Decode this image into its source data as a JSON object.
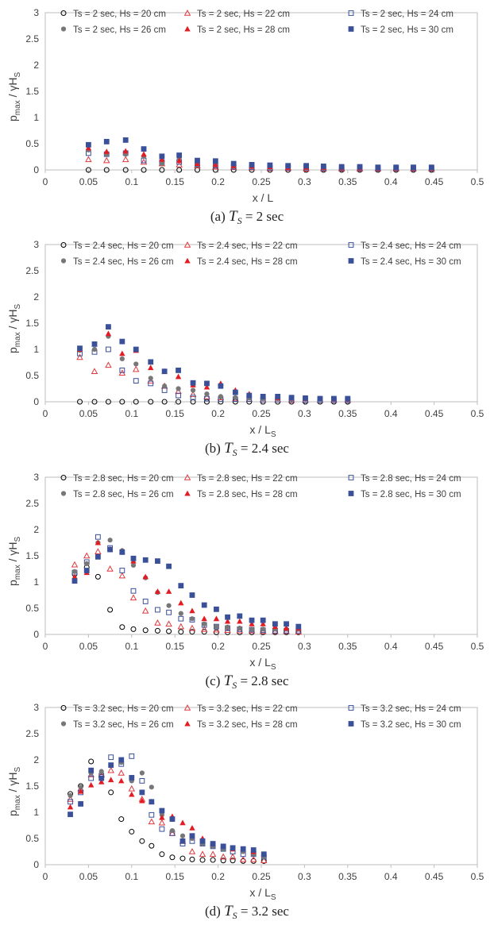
{
  "chart_data": [
    {
      "type": "scatter",
      "caption": {
        "label": "(a)",
        "symbol": "T",
        "subscript": "S",
        "value": "= 2 sec"
      },
      "xlabel": "x / L",
      "xlabel_sub": "",
      "ylabel": {
        "main": "p",
        "sub": "max",
        "rest": "/ γH",
        "sub2": "S"
      },
      "xlim": [
        0,
        0.5
      ],
      "ylim": [
        0,
        3
      ],
      "xticks": [
        "0",
        "0.05",
        "0.1",
        "0.15",
        "0.2",
        "0.25",
        "0.3",
        "0.35",
        "0.4",
        "0.45",
        "0.5"
      ],
      "yticks": [
        "0",
        "0.5",
        "1",
        "1.5",
        "2",
        "2.5",
        "3"
      ],
      "x": [
        0.05,
        0.071,
        0.093,
        0.114,
        0.135,
        0.155,
        0.176,
        0.197,
        0.218,
        0.239,
        0.26,
        0.281,
        0.302,
        0.322,
        0.343,
        0.364,
        0.385,
        0.406,
        0.426,
        0.447
      ],
      "series": [
        {
          "name": "Ts = 2 sec, Hs = 20 cm",
          "marker": "circle-open",
          "values": [
            0,
            0,
            0,
            0,
            0,
            0,
            0,
            0,
            0,
            0,
            0,
            0,
            0,
            0,
            0,
            0,
            0,
            0,
            0,
            0
          ]
        },
        {
          "name": "Ts = 2 sec, Hs = 22 cm",
          "marker": "triangle-open",
          "values": [
            0.2,
            0.18,
            0.2,
            0.15,
            0.12,
            0.1,
            0.08,
            0.06,
            0.05,
            0.04,
            0.03,
            0.03,
            0.02,
            0.02,
            0.02,
            0.02,
            0.02,
            0.02,
            0.02,
            0.02
          ]
        },
        {
          "name": "Ts = 2 sec, Hs = 24 cm",
          "marker": "square-open",
          "values": [
            0.32,
            0.3,
            0.32,
            0.18,
            0.15,
            0.15,
            0.1,
            0.08,
            0.06,
            0.05,
            0.04,
            0.04,
            0.04,
            0.03,
            0.03,
            0.03,
            0.03,
            0.03,
            0.03,
            0.03
          ]
        },
        {
          "name": "Ts = 2 sec, Hs = 26 cm",
          "marker": "circle-filled",
          "values": [
            0.38,
            0.3,
            0.3,
            0.26,
            0.12,
            0.22,
            0.1,
            0.08,
            0.07,
            0.06,
            0.05,
            0.05,
            0.05,
            0.04,
            0.04,
            0.04,
            0.04,
            0.03,
            0.03,
            0.03
          ]
        },
        {
          "name": "Ts = 2 sec, Hs = 28 cm",
          "marker": "triangle-filled",
          "values": [
            0.42,
            0.35,
            0.36,
            0.3,
            0.2,
            0.18,
            0.12,
            0.1,
            0.08,
            0.07,
            0.06,
            0.05,
            0.05,
            0.05,
            0.04,
            0.04,
            0.04,
            0.04,
            0.04,
            0.04
          ]
        },
        {
          "name": "Ts = 2 sec, Hs = 30 cm",
          "marker": "square-filled",
          "values": [
            0.48,
            0.54,
            0.57,
            0.4,
            0.26,
            0.28,
            0.18,
            0.17,
            0.12,
            0.1,
            0.09,
            0.08,
            0.08,
            0.07,
            0.06,
            0.06,
            0.05,
            0.05,
            0.05,
            0.05
          ]
        }
      ]
    },
    {
      "type": "scatter",
      "caption": {
        "label": "(b)",
        "symbol": "T",
        "subscript": "S",
        "value": "= 2.4 sec"
      },
      "xlabel": "x / L",
      "xlabel_sub": "S",
      "ylabel": {
        "main": "p",
        "sub": "max",
        "rest": "/ γH",
        "sub2": "S"
      },
      "xlim": [
        0,
        0.5
      ],
      "ylim": [
        0,
        3
      ],
      "xticks": [
        "0",
        "0.05",
        "0.1",
        "0.15",
        "0.2",
        "0.25",
        "0.3",
        "0.35",
        "0.4",
        "0.45",
        "0.5"
      ],
      "yticks": [
        "0",
        "0.5",
        "1",
        "1.5",
        "2",
        "2.5",
        "3"
      ],
      "x": [
        0.04,
        0.057,
        0.073,
        0.089,
        0.105,
        0.122,
        0.138,
        0.154,
        0.171,
        0.187,
        0.203,
        0.22,
        0.236,
        0.252,
        0.269,
        0.285,
        0.301,
        0.318,
        0.334,
        0.35
      ],
      "series": [
        {
          "name": "Ts = 2.4 sec, Hs = 20 cm",
          "marker": "circle-open",
          "values": [
            0,
            0,
            0,
            0,
            0,
            0,
            0,
            0,
            0,
            0,
            0,
            0,
            0,
            0,
            0,
            0,
            0,
            0,
            0,
            0
          ]
        },
        {
          "name": "Ts = 2.4 sec, Hs = 22 cm",
          "marker": "triangle-open",
          "values": [
            0.85,
            0.58,
            0.7,
            0.55,
            0.62,
            0.4,
            0.3,
            0.2,
            0.14,
            0.1,
            0.08,
            0.06,
            0.05,
            0.04,
            0.04,
            0.03,
            0.03,
            0.03,
            0.03,
            0.03
          ]
        },
        {
          "name": "Ts = 2.4 sec, Hs = 24 cm",
          "marker": "square-open",
          "values": [
            0.92,
            0.95,
            1.0,
            0.6,
            0.4,
            0.35,
            0.22,
            0.12,
            0.08,
            0.06,
            0.05,
            0.05,
            0.05,
            0.04,
            0.04,
            0.04,
            0.03,
            0.03,
            0.03,
            0.03
          ]
        },
        {
          "name": "Ts = 2.4 sec, Hs = 26 cm",
          "marker": "circle-filled",
          "values": [
            0.98,
            1.0,
            1.25,
            0.82,
            0.72,
            0.45,
            0.3,
            0.25,
            0.22,
            0.15,
            0.1,
            0.08,
            0.07,
            0.06,
            0.06,
            0.05,
            0.05,
            0.05,
            0.05,
            0.04
          ]
        },
        {
          "name": "Ts = 2.4 sec, Hs = 28 cm",
          "marker": "triangle-filled",
          "values": [
            1.0,
            1.1,
            1.3,
            0.92,
            0.98,
            0.65,
            0.58,
            0.48,
            0.32,
            0.28,
            0.35,
            0.22,
            0.15,
            0.1,
            0.08,
            0.07,
            0.06,
            0.06,
            0.05,
            0.05
          ]
        },
        {
          "name": "Ts = 2.4 sec, Hs = 30 cm",
          "marker": "square-filled",
          "values": [
            1.02,
            1.1,
            1.43,
            1.15,
            1.0,
            0.76,
            0.58,
            0.6,
            0.36,
            0.35,
            0.3,
            0.18,
            0.12,
            0.1,
            0.1,
            0.08,
            0.07,
            0.06,
            0.06,
            0.06
          ]
        }
      ]
    },
    {
      "type": "scatter",
      "caption": {
        "label": "(c)",
        "symbol": "T",
        "subscript": "S",
        "value": "= 2.8 sec"
      },
      "xlabel": "x / L",
      "xlabel_sub": "S",
      "ylabel": {
        "main": "p",
        "sub": "max",
        "rest": "/ γH",
        "sub2": "S"
      },
      "xlim": [
        0,
        0.5
      ],
      "ylim": [
        0,
        3
      ],
      "xticks": [
        "0",
        "0.05",
        "0.1",
        "0.15",
        "0.2",
        "0.25",
        "0.3",
        "0.35",
        "0.4",
        "0.45",
        "0.5"
      ],
      "yticks": [
        "0",
        "0.5",
        "1",
        "1.5",
        "2",
        "2.5",
        "3"
      ],
      "x": [
        0.034,
        0.048,
        0.061,
        0.075,
        0.089,
        0.102,
        0.116,
        0.13,
        0.143,
        0.157,
        0.17,
        0.184,
        0.198,
        0.211,
        0.225,
        0.239,
        0.252,
        0.266,
        0.279,
        0.293
      ],
      "series": [
        {
          "name": "Ts = 2.8 sec, Hs = 20 cm",
          "marker": "circle-open",
          "values": [
            1.15,
            1.28,
            1.1,
            0.47,
            0.14,
            0.1,
            0.08,
            0.07,
            0.06,
            0.05,
            0.05,
            0.05,
            0.04,
            0.04,
            0.04,
            0.04,
            0.04,
            0.04,
            0.04,
            0.04
          ]
        },
        {
          "name": "Ts = 2.8 sec, Hs = 22 cm",
          "marker": "triangle-open",
          "values": [
            1.33,
            1.5,
            1.58,
            1.25,
            1.12,
            0.7,
            0.45,
            0.22,
            0.2,
            0.15,
            0.12,
            0.1,
            0.09,
            0.08,
            0.07,
            0.07,
            0.06,
            0.06,
            0.06,
            0.05
          ]
        },
        {
          "name": "Ts = 2.8 sec, Hs = 24 cm",
          "marker": "square-open",
          "values": [
            1.18,
            1.38,
            1.86,
            1.65,
            1.22,
            0.83,
            0.63,
            0.47,
            0.42,
            0.3,
            0.28,
            0.18,
            0.15,
            0.12,
            0.1,
            0.09,
            0.08,
            0.07,
            0.07,
            0.07
          ]
        },
        {
          "name": "Ts = 2.8 sec, Hs = 26 cm",
          "marker": "circle-filled",
          "values": [
            1.2,
            1.35,
            1.75,
            1.8,
            1.6,
            1.32,
            1.08,
            0.8,
            0.55,
            0.4,
            0.3,
            0.2,
            0.15,
            0.14,
            0.12,
            0.1,
            0.1,
            0.1,
            0.1,
            0.1
          ]
        },
        {
          "name": "Ts = 2.8 sec, Hs = 28 cm",
          "marker": "triangle-filled",
          "values": [
            1.1,
            1.18,
            1.75,
            1.63,
            1.58,
            1.4,
            1.1,
            0.82,
            0.82,
            0.6,
            0.45,
            0.3,
            0.3,
            0.25,
            0.25,
            0.2,
            0.2,
            0.15,
            0.12,
            0.12
          ]
        },
        {
          "name": "Ts = 2.8 sec, Hs = 30 cm",
          "marker": "square-filled",
          "values": [
            1.02,
            1.22,
            1.48,
            1.62,
            1.57,
            1.45,
            1.42,
            1.4,
            1.3,
            0.93,
            0.75,
            0.56,
            0.48,
            0.33,
            0.35,
            0.27,
            0.27,
            0.2,
            0.2,
            0.15
          ]
        }
      ]
    },
    {
      "type": "scatter",
      "caption": {
        "label": "(d)",
        "symbol": "T",
        "subscript": "S",
        "value": "= 3.2 sec"
      },
      "xlabel": "x / L",
      "xlabel_sub": "S",
      "ylabel": {
        "main": "p",
        "sub": "max",
        "rest": "/ γH",
        "sub2": "S"
      },
      "xlim": [
        0,
        0.5
      ],
      "ylim": [
        0,
        3
      ],
      "xticks": [
        "0",
        "0.05",
        "0.1",
        "0.15",
        "0.2",
        "0.25",
        "0.3",
        "0.35",
        "0.4",
        "0.45",
        "0.5"
      ],
      "yticks": [
        "0",
        "0.5",
        "1",
        "1.5",
        "2",
        "2.5",
        "3"
      ],
      "x": [
        0.029,
        0.041,
        0.053,
        0.065,
        0.076,
        0.088,
        0.1,
        0.112,
        0.123,
        0.135,
        0.147,
        0.159,
        0.17,
        0.182,
        0.194,
        0.206,
        0.217,
        0.229,
        0.241,
        0.253
      ],
      "series": [
        {
          "name": "Ts = 3.2 sec, Hs = 20 cm",
          "marker": "circle-open",
          "values": [
            1.35,
            1.5,
            1.97,
            1.68,
            1.38,
            0.87,
            0.63,
            0.45,
            0.36,
            0.2,
            0.14,
            0.12,
            0.1,
            0.09,
            0.09,
            0.08,
            0.08,
            0.07,
            0.07,
            0.07
          ]
        },
        {
          "name": "Ts = 3.2 sec, Hs = 22 cm",
          "marker": "triangle-open",
          "values": [
            1.25,
            1.45,
            1.72,
            1.72,
            1.8,
            1.75,
            1.45,
            1.25,
            0.82,
            0.8,
            0.6,
            0.45,
            0.25,
            0.2,
            0.2,
            0.15,
            0.15,
            0.1,
            0.1,
            0.08
          ]
        },
        {
          "name": "Ts = 3.2 sec, Hs = 24 cm",
          "marker": "square-open",
          "values": [
            1.2,
            1.38,
            1.65,
            1.7,
            2.05,
            1.92,
            2.07,
            1.6,
            0.95,
            0.68,
            0.6,
            0.4,
            0.45,
            0.4,
            0.35,
            0.3,
            0.25,
            0.2,
            0.2,
            0.15
          ]
        },
        {
          "name": "Ts = 3.2 sec, Hs = 26 cm",
          "marker": "circle-filled",
          "values": [
            1.32,
            1.48,
            1.75,
            1.78,
            1.9,
            1.95,
            1.6,
            1.75,
            1.48,
            0.95,
            0.65,
            0.55,
            0.5,
            0.4,
            0.35,
            0.3,
            0.3,
            0.25,
            0.2,
            0.15
          ]
        },
        {
          "name": "Ts = 3.2 sec, Hs = 28 cm",
          "marker": "triangle-filled",
          "values": [
            1.1,
            1.4,
            1.52,
            1.58,
            1.62,
            1.6,
            1.34,
            1.22,
            1.2,
            0.9,
            0.92,
            0.8,
            0.7,
            0.5,
            0.4,
            0.35,
            0.3,
            0.3,
            0.25,
            0.2
          ]
        },
        {
          "name": "Ts = 3.2 sec, Hs = 30 cm",
          "marker": "square-filled",
          "values": [
            0.96,
            1.16,
            1.8,
            1.65,
            1.9,
            2.0,
            1.66,
            1.38,
            1.2,
            1.03,
            0.87,
            0.45,
            0.55,
            0.45,
            0.4,
            0.35,
            0.32,
            0.3,
            0.28,
            0.2
          ]
        }
      ]
    }
  ],
  "colors": {
    "series_20": "#000000",
    "series_22": "#e0393e",
    "series_24": "#3a4f9c",
    "series_26": "#777777",
    "series_28": "#e31c23",
    "series_30": "#3a5199",
    "axis": "#bdbdbd",
    "text": "#404040"
  }
}
